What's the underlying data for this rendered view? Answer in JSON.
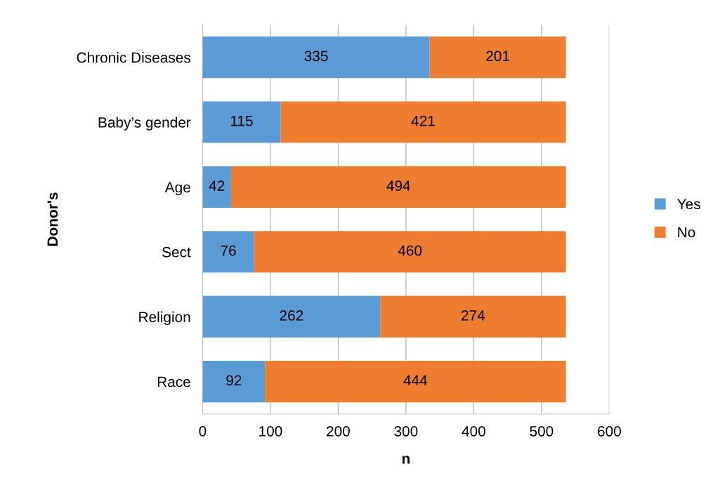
{
  "chart_data": {
    "type": "bar",
    "orientation": "horizontal",
    "stacked": true,
    "ylabel": "Donor's",
    "xlabel": "n",
    "categories": [
      "Chronic Diseases",
      "Baby’s gender",
      "Age",
      "Sect",
      "Religion",
      "Race"
    ],
    "series": [
      {
        "name": "Yes",
        "color": "#5b9bd5",
        "values": [
          335,
          115,
          42,
          76,
          262,
          92
        ]
      },
      {
        "name": "No",
        "color": "#ed7d31",
        "values": [
          201,
          421,
          494,
          460,
          274,
          444
        ]
      }
    ],
    "xlim": [
      0,
      600
    ],
    "xticks": [
      0,
      100,
      200,
      300,
      400,
      500,
      600
    ],
    "grid": "x",
    "legend": "right",
    "data_labels": true
  }
}
